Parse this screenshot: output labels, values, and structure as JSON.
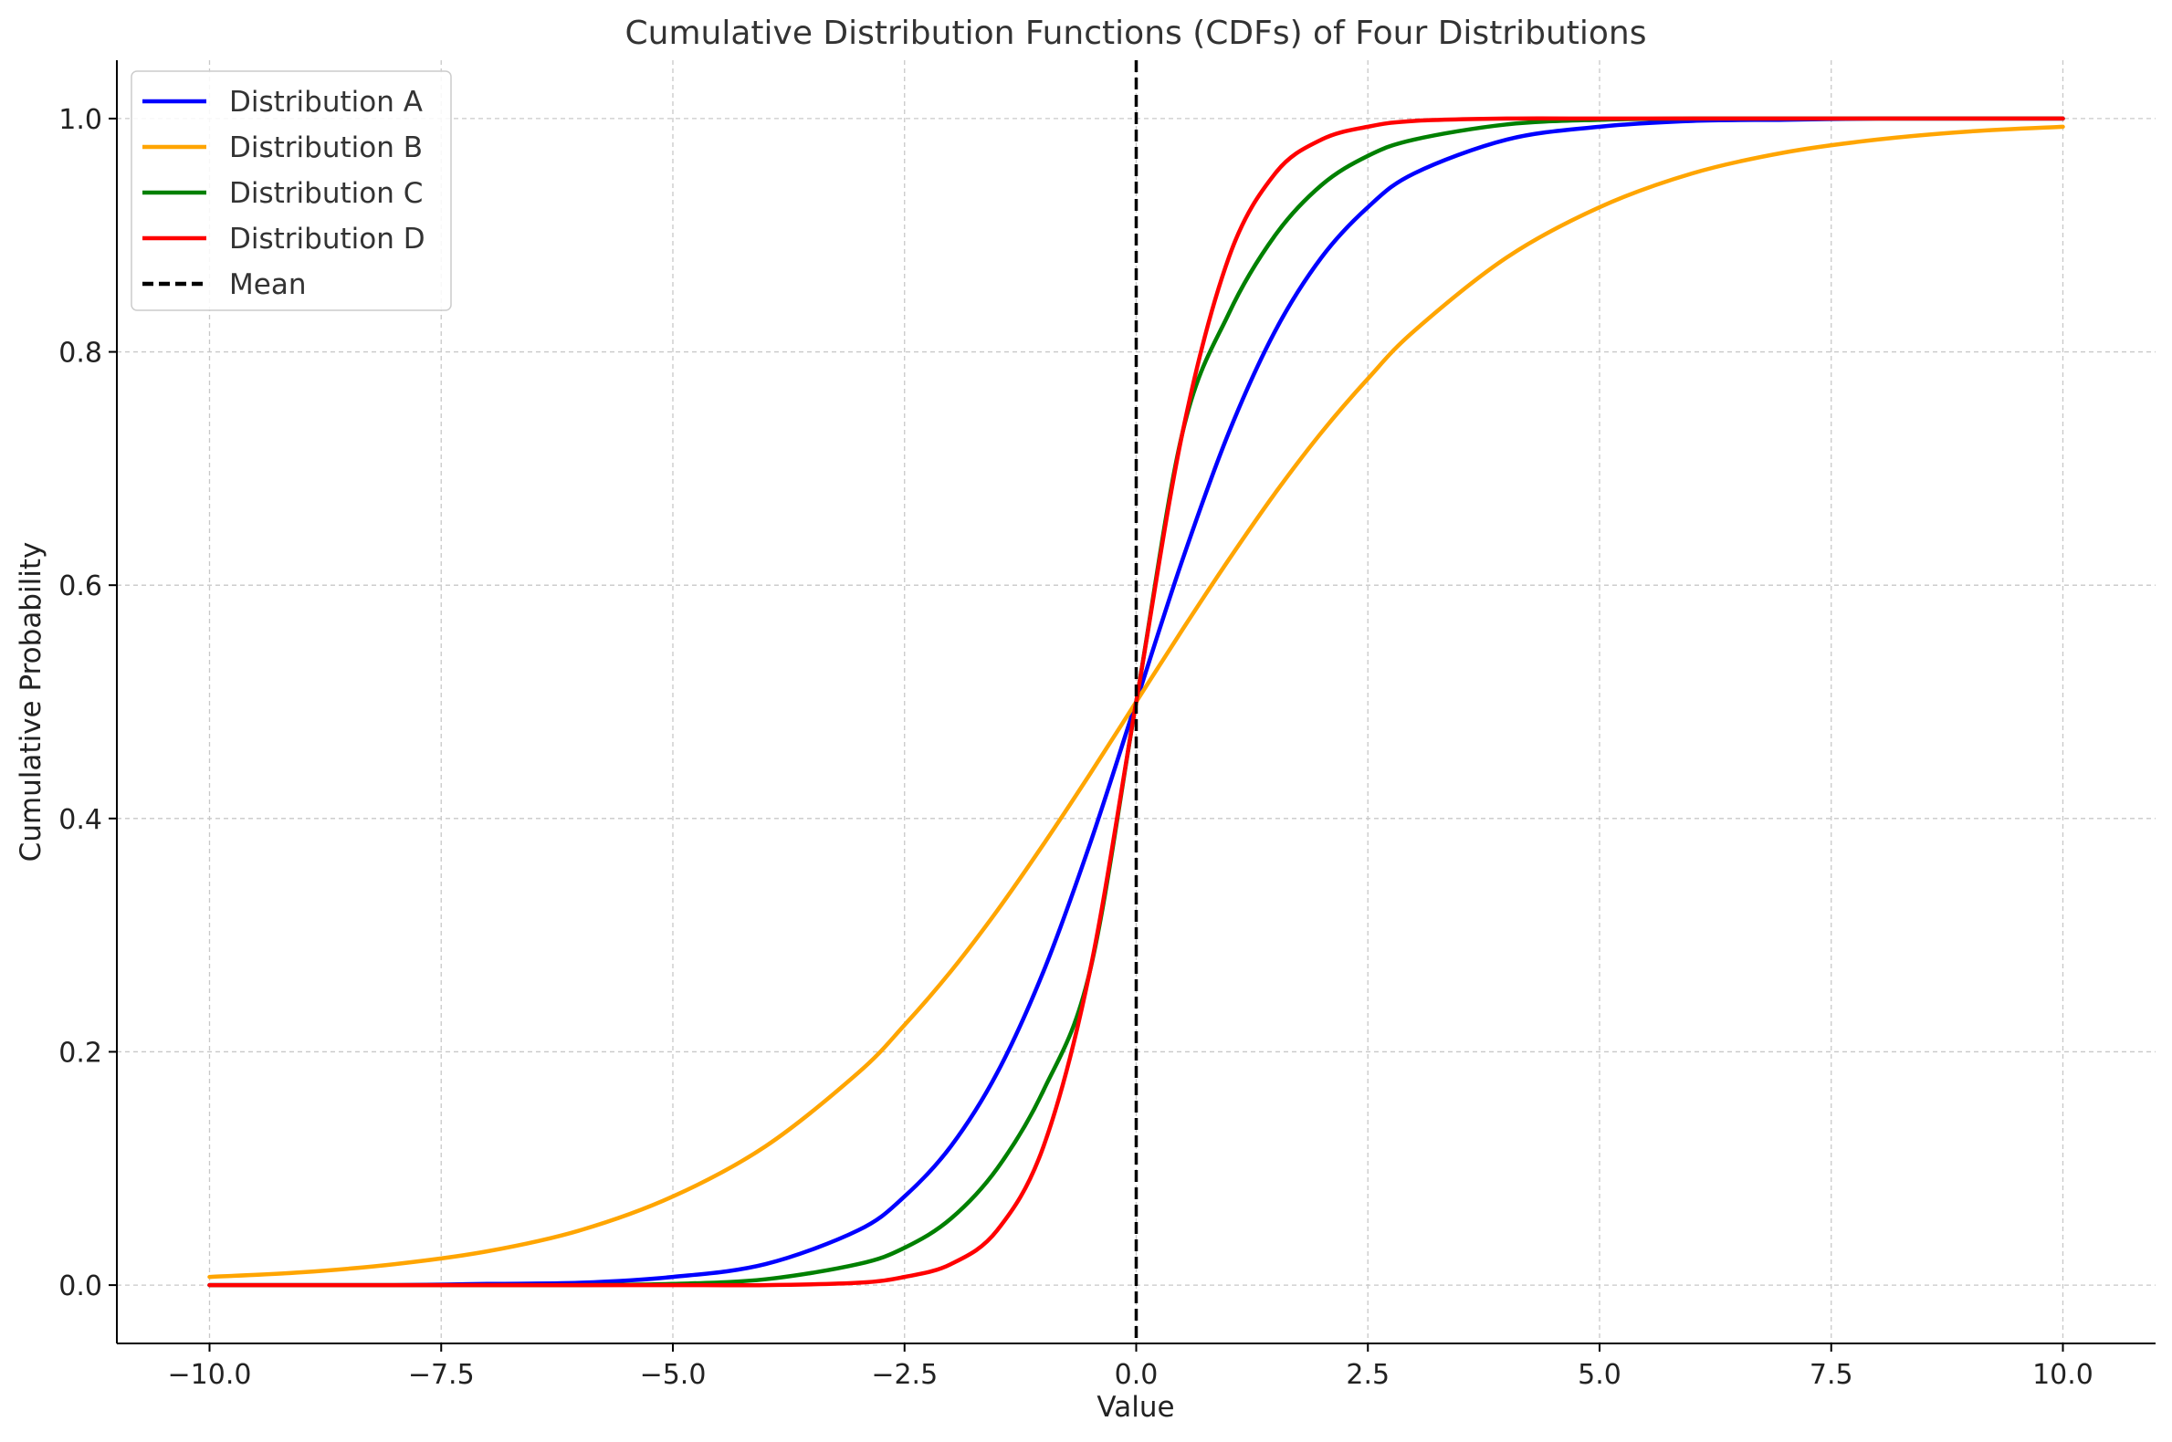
{
  "chart_data": {
    "type": "line",
    "title": "Cumulative Distribution Functions (CDFs) of Four Distributions",
    "xlabel": "Value",
    "ylabel": "Cumulative Probability",
    "xlim": [
      -11.0,
      11.0
    ],
    "ylim": [
      -0.05,
      1.05
    ],
    "x_ticks": [
      -10.0,
      -7.5,
      -5.0,
      -2.5,
      0.0,
      2.5,
      5.0,
      7.5,
      10.0
    ],
    "x_tick_labels": [
      "−10.0",
      "−7.5",
      "−5.0",
      "−2.5",
      "0.0",
      "2.5",
      "5.0",
      "7.5",
      "10.0"
    ],
    "y_ticks": [
      0.0,
      0.2,
      0.4,
      0.6,
      0.8,
      1.0
    ],
    "y_tick_labels": [
      "0.0",
      "0.2",
      "0.4",
      "0.6",
      "0.8",
      "1.0"
    ],
    "grid": true,
    "legend_position": "top-left",
    "x": [
      -10,
      -9,
      -8,
      -7,
      -6,
      -5,
      -4,
      -3,
      -2.5,
      -2,
      -1.5,
      -1,
      -0.5,
      0,
      0.5,
      1,
      1.5,
      2,
      2.5,
      3,
      4,
      5,
      6,
      7,
      8,
      9,
      10
    ],
    "series": [
      {
        "name": "Distribution A",
        "color": "#0000ff",
        "values": [
          0.0,
          0.0,
          0.0,
          0.001,
          0.002,
          0.007,
          0.018,
          0.047,
          0.076,
          0.119,
          0.182,
          0.269,
          0.378,
          0.5,
          0.622,
          0.731,
          0.818,
          0.881,
          0.924,
          0.953,
          0.982,
          0.993,
          0.998,
          0.999,
          1.0,
          1.0,
          1.0
        ]
      },
      {
        "name": "Distribution B",
        "color": "#ffa500",
        "values": [
          0.007,
          0.011,
          0.018,
          0.029,
          0.047,
          0.076,
          0.119,
          0.182,
          0.223,
          0.269,
          0.321,
          0.378,
          0.438,
          0.5,
          0.562,
          0.622,
          0.679,
          0.731,
          0.777,
          0.818,
          0.881,
          0.924,
          0.953,
          0.971,
          0.982,
          0.989,
          0.993
        ]
      },
      {
        "name": "Distribution C",
        "color": "#008000",
        "values": [
          0.0,
          0.0,
          0.0,
          0.0,
          0.0,
          0.001,
          0.005,
          0.018,
          0.032,
          0.057,
          0.1,
          0.167,
          0.269,
          0.5,
          0.731,
          0.833,
          0.9,
          0.943,
          0.968,
          0.982,
          0.995,
          0.999,
          1.0,
          1.0,
          1.0,
          1.0,
          1.0
        ]
      },
      {
        "name": "Distribution D",
        "color": "#ff0000",
        "values": [
          0.0,
          0.0,
          0.0,
          0.0,
          0.0,
          0.0,
          0.0,
          0.002,
          0.007,
          0.018,
          0.047,
          0.119,
          0.269,
          0.5,
          0.731,
          0.881,
          0.953,
          0.982,
          0.993,
          0.998,
          1.0,
          1.0,
          1.0,
          1.0,
          1.0,
          1.0,
          1.0
        ]
      }
    ],
    "mean_line": {
      "name": "Mean",
      "x": 0.0,
      "color": "#000000",
      "style": "dashed"
    }
  }
}
